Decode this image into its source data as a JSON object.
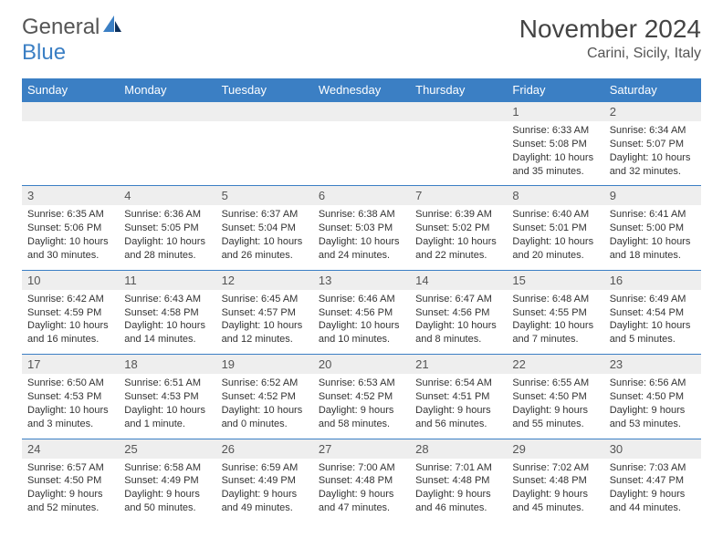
{
  "brand": {
    "part1": "General",
    "part2": "Blue"
  },
  "title": "November 2024",
  "location": "Carini, Sicily, Italy",
  "colors": {
    "accent": "#3b7fc4",
    "numrow_bg": "#eeeeee",
    "text": "#333333"
  },
  "day_headers": [
    "Sunday",
    "Monday",
    "Tuesday",
    "Wednesday",
    "Thursday",
    "Friday",
    "Saturday"
  ],
  "weeks": [
    [
      null,
      null,
      null,
      null,
      null,
      {
        "n": "1",
        "sunrise": "Sunrise: 6:33 AM",
        "sunset": "Sunset: 5:08 PM",
        "day": "Daylight: 10 hours and 35 minutes."
      },
      {
        "n": "2",
        "sunrise": "Sunrise: 6:34 AM",
        "sunset": "Sunset: 5:07 PM",
        "day": "Daylight: 10 hours and 32 minutes."
      }
    ],
    [
      {
        "n": "3",
        "sunrise": "Sunrise: 6:35 AM",
        "sunset": "Sunset: 5:06 PM",
        "day": "Daylight: 10 hours and 30 minutes."
      },
      {
        "n": "4",
        "sunrise": "Sunrise: 6:36 AM",
        "sunset": "Sunset: 5:05 PM",
        "day": "Daylight: 10 hours and 28 minutes."
      },
      {
        "n": "5",
        "sunrise": "Sunrise: 6:37 AM",
        "sunset": "Sunset: 5:04 PM",
        "day": "Daylight: 10 hours and 26 minutes."
      },
      {
        "n": "6",
        "sunrise": "Sunrise: 6:38 AM",
        "sunset": "Sunset: 5:03 PM",
        "day": "Daylight: 10 hours and 24 minutes."
      },
      {
        "n": "7",
        "sunrise": "Sunrise: 6:39 AM",
        "sunset": "Sunset: 5:02 PM",
        "day": "Daylight: 10 hours and 22 minutes."
      },
      {
        "n": "8",
        "sunrise": "Sunrise: 6:40 AM",
        "sunset": "Sunset: 5:01 PM",
        "day": "Daylight: 10 hours and 20 minutes."
      },
      {
        "n": "9",
        "sunrise": "Sunrise: 6:41 AM",
        "sunset": "Sunset: 5:00 PM",
        "day": "Daylight: 10 hours and 18 minutes."
      }
    ],
    [
      {
        "n": "10",
        "sunrise": "Sunrise: 6:42 AM",
        "sunset": "Sunset: 4:59 PM",
        "day": "Daylight: 10 hours and 16 minutes."
      },
      {
        "n": "11",
        "sunrise": "Sunrise: 6:43 AM",
        "sunset": "Sunset: 4:58 PM",
        "day": "Daylight: 10 hours and 14 minutes."
      },
      {
        "n": "12",
        "sunrise": "Sunrise: 6:45 AM",
        "sunset": "Sunset: 4:57 PM",
        "day": "Daylight: 10 hours and 12 minutes."
      },
      {
        "n": "13",
        "sunrise": "Sunrise: 6:46 AM",
        "sunset": "Sunset: 4:56 PM",
        "day": "Daylight: 10 hours and 10 minutes."
      },
      {
        "n": "14",
        "sunrise": "Sunrise: 6:47 AM",
        "sunset": "Sunset: 4:56 PM",
        "day": "Daylight: 10 hours and 8 minutes."
      },
      {
        "n": "15",
        "sunrise": "Sunrise: 6:48 AM",
        "sunset": "Sunset: 4:55 PM",
        "day": "Daylight: 10 hours and 7 minutes."
      },
      {
        "n": "16",
        "sunrise": "Sunrise: 6:49 AM",
        "sunset": "Sunset: 4:54 PM",
        "day": "Daylight: 10 hours and 5 minutes."
      }
    ],
    [
      {
        "n": "17",
        "sunrise": "Sunrise: 6:50 AM",
        "sunset": "Sunset: 4:53 PM",
        "day": "Daylight: 10 hours and 3 minutes."
      },
      {
        "n": "18",
        "sunrise": "Sunrise: 6:51 AM",
        "sunset": "Sunset: 4:53 PM",
        "day": "Daylight: 10 hours and 1 minute."
      },
      {
        "n": "19",
        "sunrise": "Sunrise: 6:52 AM",
        "sunset": "Sunset: 4:52 PM",
        "day": "Daylight: 10 hours and 0 minutes."
      },
      {
        "n": "20",
        "sunrise": "Sunrise: 6:53 AM",
        "sunset": "Sunset: 4:52 PM",
        "day": "Daylight: 9 hours and 58 minutes."
      },
      {
        "n": "21",
        "sunrise": "Sunrise: 6:54 AM",
        "sunset": "Sunset: 4:51 PM",
        "day": "Daylight: 9 hours and 56 minutes."
      },
      {
        "n": "22",
        "sunrise": "Sunrise: 6:55 AM",
        "sunset": "Sunset: 4:50 PM",
        "day": "Daylight: 9 hours and 55 minutes."
      },
      {
        "n": "23",
        "sunrise": "Sunrise: 6:56 AM",
        "sunset": "Sunset: 4:50 PM",
        "day": "Daylight: 9 hours and 53 minutes."
      }
    ],
    [
      {
        "n": "24",
        "sunrise": "Sunrise: 6:57 AM",
        "sunset": "Sunset: 4:50 PM",
        "day": "Daylight: 9 hours and 52 minutes."
      },
      {
        "n": "25",
        "sunrise": "Sunrise: 6:58 AM",
        "sunset": "Sunset: 4:49 PM",
        "day": "Daylight: 9 hours and 50 minutes."
      },
      {
        "n": "26",
        "sunrise": "Sunrise: 6:59 AM",
        "sunset": "Sunset: 4:49 PM",
        "day": "Daylight: 9 hours and 49 minutes."
      },
      {
        "n": "27",
        "sunrise": "Sunrise: 7:00 AM",
        "sunset": "Sunset: 4:48 PM",
        "day": "Daylight: 9 hours and 47 minutes."
      },
      {
        "n": "28",
        "sunrise": "Sunrise: 7:01 AM",
        "sunset": "Sunset: 4:48 PM",
        "day": "Daylight: 9 hours and 46 minutes."
      },
      {
        "n": "29",
        "sunrise": "Sunrise: 7:02 AM",
        "sunset": "Sunset: 4:48 PM",
        "day": "Daylight: 9 hours and 45 minutes."
      },
      {
        "n": "30",
        "sunrise": "Sunrise: 7:03 AM",
        "sunset": "Sunset: 4:47 PM",
        "day": "Daylight: 9 hours and 44 minutes."
      }
    ]
  ]
}
